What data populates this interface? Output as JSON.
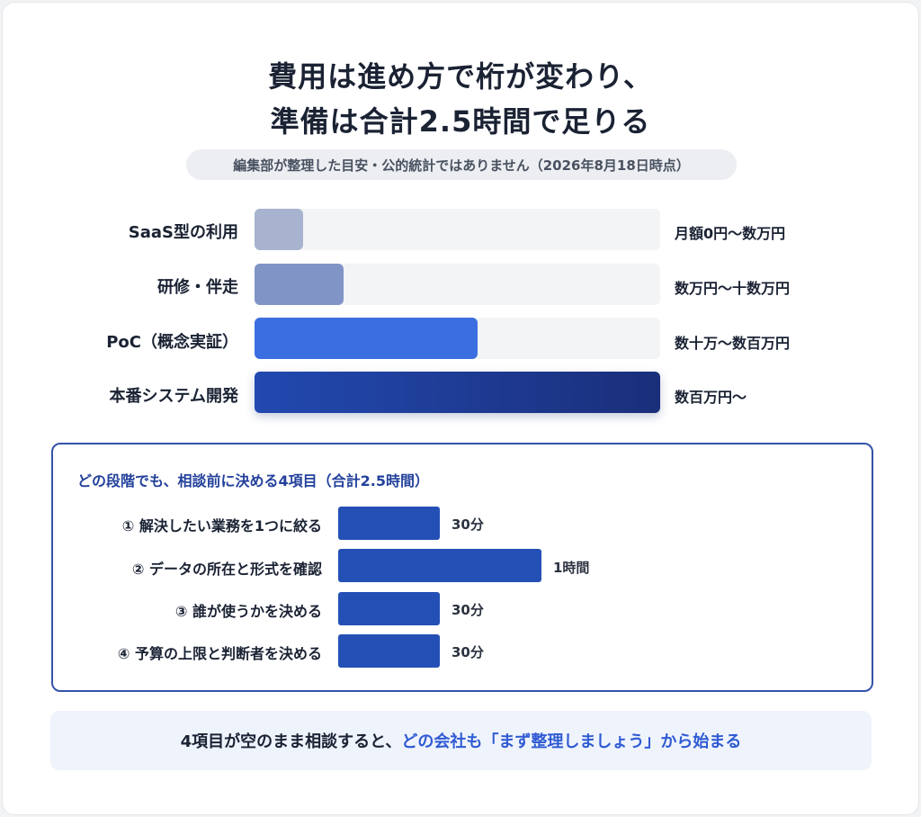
{
  "title_line1": "費用は進め方で桁が変わり、",
  "title_line2": "準備は合計2.5時間で足りる",
  "subtitle": "編集部が整理した目安・公的統計ではありません（2026年8月18日時点）",
  "colors": {
    "saas": "#a7b3cf",
    "training": "#8094c6",
    "poc": "#3b6ee0",
    "production_start": "#2249b0",
    "production_end": "#1a2f7a",
    "accent": "#2f5bd3",
    "task_bar": "#2450b5"
  },
  "chart_data": [
    {
      "type": "bar",
      "orientation": "horizontal",
      "categories": [
        "SaaS型の利用",
        "研修・伴走",
        "PoC（概念実証）",
        "本番システム開発"
      ],
      "value_labels": [
        "月額0円〜数万円",
        "数万円〜十数万円",
        "数十万〜数百万円",
        "数百万円〜"
      ],
      "relative_values": [
        0.12,
        0.22,
        0.55,
        1.0
      ]
    },
    {
      "type": "bar",
      "orientation": "horizontal",
      "title": "どの段階でも、相談前に決める4項目（合計2.5時間）",
      "categories": [
        "① 解決したい業務を1つに絞る",
        "② データの所在と形式を確認",
        "③ 誰が使うかを決める",
        "④ 予算の上限と判断者を決める"
      ],
      "values": [
        30,
        60,
        30,
        30
      ],
      "value_labels": [
        "30分",
        "1時間",
        "30分",
        "30分"
      ]
    }
  ],
  "footer": {
    "text_plain": "4項目が空のまま相談すると、",
    "text_highlight": "どの会社も「まず整理しましょう」から始まる"
  }
}
